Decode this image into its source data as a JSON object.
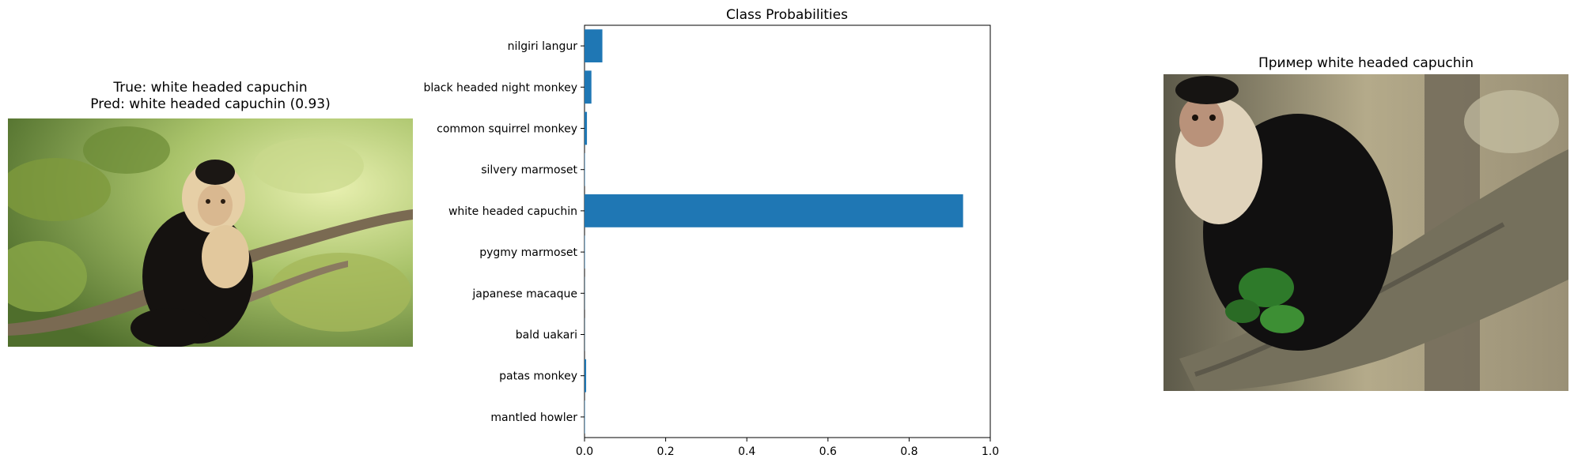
{
  "left_panel": {
    "title_line1": "True: white headed capuchin",
    "title_line2": "Pred: white headed capuchin (0.93)",
    "image_label": "capuchin-monkey-on-branch-photo"
  },
  "right_panel": {
    "title": "Пример white headed capuchin",
    "image_label": "capuchin-monkey-close-up-photo"
  },
  "chart_data": {
    "type": "bar",
    "orientation": "horizontal",
    "title": "Class Probabilities",
    "xlabel": "",
    "ylabel": "",
    "xlim": [
      0,
      1.0
    ],
    "xticks": [
      "0.0",
      "0.2",
      "0.4",
      "0.6",
      "0.8",
      "1.0"
    ],
    "categories": [
      "nilgiri langur",
      "black headed night monkey",
      "common squirrel monkey",
      "silvery marmoset",
      "white headed capuchin",
      "pygmy marmoset",
      "japanese macaque",
      "bald uakari",
      "patas monkey",
      "mantled howler"
    ],
    "values": [
      0.044,
      0.017,
      0.006,
      0.001,
      0.933,
      0.001,
      0.0005,
      0.0005,
      0.004,
      0.001
    ],
    "bar_color": "#1f77b4",
    "grid": false
  }
}
